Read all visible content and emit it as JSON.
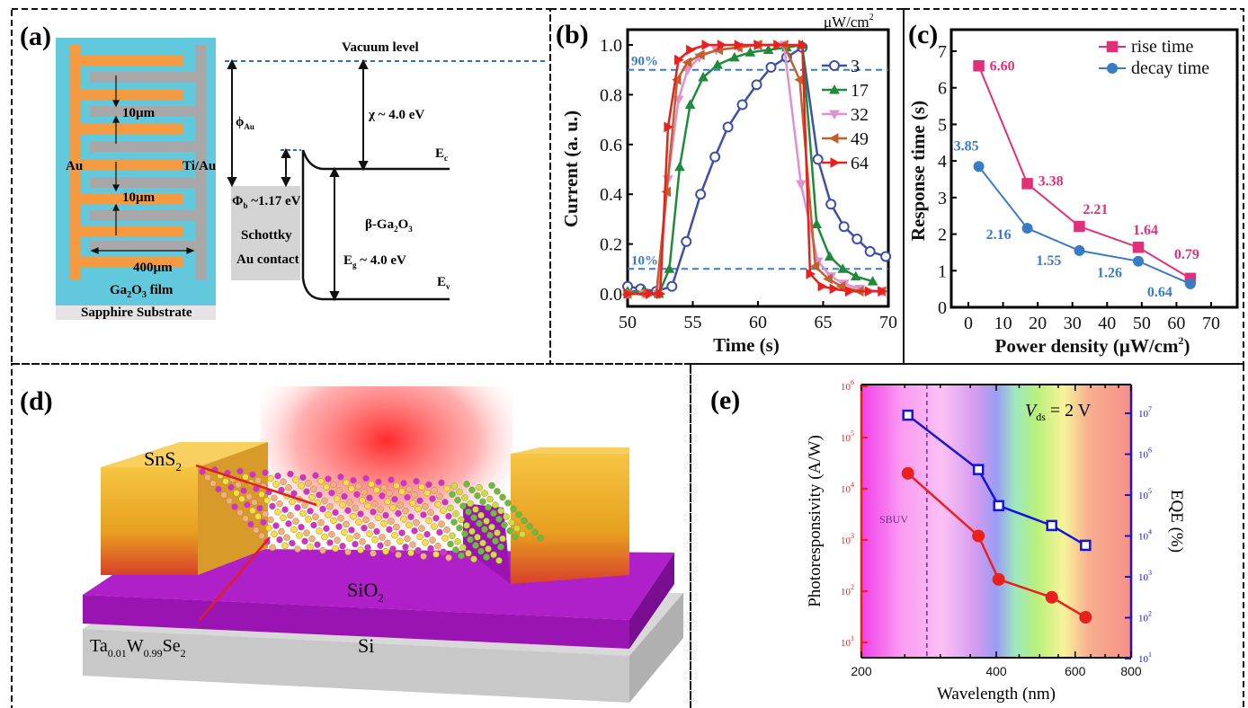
{
  "panels": {
    "a": {
      "label": "(a)",
      "device": {
        "au": "Au",
        "tiau": "Ti/Au",
        "gap1": "10µm",
        "gap2": "10µm",
        "length": "400µm",
        "film": "Ga",
        "film_sub1": "2",
        "film_o": "O",
        "film_sub2": "3",
        "film_tail": " film",
        "substrate": "Sapphire Substrate"
      },
      "band": {
        "vacuum": "Vacuum level",
        "phi_au": "ϕ",
        "phi_au_sub": "Au",
        "chi": "χ ~ 4.0 eV",
        "ec": "E",
        "ec_sub": "c",
        "phi_b": "Φ",
        "phi_b_sub": "b",
        "phi_b_val": " ~1.17 eV",
        "schottky1": "Schottky",
        "schottky2": "Au contact",
        "material": "β-Ga",
        "material_sub1": "2",
        "material_o": "O",
        "material_sub2": "3",
        "eg": "E",
        "eg_sub": "g",
        "eg_val": " ~ 4.0 eV",
        "ev": "E",
        "ev_sub": "v"
      }
    },
    "b": {
      "label": "(b)"
    },
    "c": {
      "label": "(c)"
    },
    "d": {
      "label": "(d)",
      "sns2": "SnS",
      "sns2_sub": "2",
      "tawse": [
        "Ta",
        "0.01",
        "W",
        "0.99",
        "Se",
        "2"
      ],
      "sio2": "SiO",
      "sio2_sub": "2",
      "si": "Si"
    },
    "e": {
      "label": "(e)",
      "vds_v": "V",
      "vds_sub": "ds",
      "vds_val": " = 2 V",
      "sbuv": "SBUV"
    }
  },
  "chart_data": [
    {
      "panel": "b",
      "type": "line",
      "xlabel": "Time (s)",
      "ylabel": "Current (a. u.)",
      "xlim": [
        50,
        70
      ],
      "ylim": [
        0,
        1.0
      ],
      "xticks": [
        "50",
        "55",
        "60",
        "65",
        "70"
      ],
      "yticks": [
        "0.0",
        "0.2",
        "0.4",
        "0.6",
        "0.8",
        "1.0"
      ],
      "legend_title": "μW/cm",
      "legend_title_sup": "2",
      "legend": "top-right",
      "reference_lines": [
        {
          "label": "90%",
          "y": 0.9,
          "color": "#3a7bc8"
        },
        {
          "label": "10%",
          "y": 0.1,
          "color": "#3a7bc8"
        }
      ],
      "series": [
        {
          "name": "3",
          "color": "#3d4fa8",
          "marker": "circle-open",
          "x": [
            50,
            51,
            52.2,
            53.4,
            54.5,
            55.6,
            56.7,
            57.7,
            58.8,
            59.9,
            61,
            62.2,
            63.4,
            64.6,
            65.6,
            66.6,
            67.6,
            68.6,
            69.8
          ],
          "y": [
            0.03,
            0.02,
            0.01,
            0.03,
            0.21,
            0.4,
            0.55,
            0.67,
            0.76,
            0.84,
            0.91,
            0.95,
            0.99,
            0.54,
            0.36,
            0.27,
            0.22,
            0.17,
            0.15
          ]
        },
        {
          "name": "17",
          "color": "#1f8a3b",
          "marker": "triangle-up",
          "x": [
            50,
            51.2,
            52.4,
            53.2,
            54,
            54.8,
            55.8,
            56.9,
            58.2,
            59.4,
            60.8,
            62.2,
            63.4,
            64.5,
            65.5,
            66.5,
            67.5,
            68.8
          ],
          "y": [
            0.01,
            0.01,
            0.0,
            0.1,
            0.51,
            0.76,
            0.87,
            0.92,
            0.95,
            0.97,
            0.98,
            0.99,
            1.0,
            0.28,
            0.15,
            0.1,
            0.07,
            0.05
          ]
        },
        {
          "name": "32",
          "color": "#e090d0",
          "marker": "triangle-down",
          "x": [
            50,
            51.2,
            52.3,
            53.1,
            53.9,
            54.6,
            55.5,
            56.8,
            58.5,
            60,
            62,
            63.3,
            64.6,
            65.6,
            66.6,
            67.8,
            69.5
          ],
          "y": [
            0.0,
            0.0,
            0.0,
            0.46,
            0.78,
            0.9,
            0.95,
            0.98,
            0.99,
            1.0,
            1.0,
            0.44,
            0.13,
            0.07,
            0.04,
            0.02,
            0.01
          ]
        },
        {
          "name": "49",
          "color": "#c0602a",
          "marker": "triangle-left",
          "x": [
            50,
            51.2,
            52.2,
            53,
            53.8,
            54.6,
            55.6,
            57,
            58.5,
            60,
            62,
            63.2,
            64.4,
            65.4,
            66.4,
            67.8,
            69.5
          ],
          "y": [
            0.0,
            0.0,
            0.0,
            0.41,
            0.86,
            0.93,
            0.96,
            0.98,
            0.99,
            1.0,
            1.0,
            0.86,
            0.11,
            0.06,
            0.03,
            0.01,
            0.01
          ]
        },
        {
          "name": "64",
          "color": "#e8201e",
          "marker": "triangle-right",
          "x": [
            50,
            51.7,
            52.5,
            53.1,
            53.9,
            54.8,
            56,
            57.2,
            58.5,
            60,
            61.5,
            63.4,
            64,
            64.9,
            65.8,
            67,
            68.5,
            69.5
          ],
          "y": [
            0.0,
            0.0,
            0.0,
            0.67,
            0.94,
            0.98,
            1.0,
            1.0,
            1.0,
            1.0,
            1.0,
            1.0,
            0.08,
            0.03,
            0.02,
            0.01,
            0.01,
            0.01
          ]
        }
      ]
    },
    {
      "panel": "c",
      "type": "line",
      "xlabel": "Power density (μW/cm",
      "xlabel_sup": "2",
      "xlabel_tail": ")",
      "ylabel": "Response time (s)",
      "xlim": [
        -5,
        70
      ],
      "ylim": [
        0,
        7
      ],
      "xticks": [
        "0",
        "10",
        "20",
        "30",
        "40",
        "50",
        "60",
        "70"
      ],
      "yticks": [
        "0",
        "1",
        "2",
        "3",
        "4",
        "5",
        "6",
        "7"
      ],
      "legend": "top-right",
      "series": [
        {
          "name": "rise time",
          "color": "#e0307a",
          "marker": "square",
          "x": [
            3,
            17,
            32,
            49,
            64
          ],
          "y": [
            6.6,
            3.38,
            2.21,
            1.64,
            0.79
          ],
          "labels": [
            "6.60",
            "3.38",
            "2.21",
            "1.64",
            "0.79"
          ]
        },
        {
          "name": "decay time",
          "color": "#3a7bc8",
          "marker": "circle",
          "x": [
            3,
            17,
            32,
            49,
            64
          ],
          "y": [
            3.85,
            2.16,
            1.55,
            1.26,
            0.64
          ],
          "labels": [
            "3.85",
            "2.16",
            "1.55",
            "1.26",
            "0.64"
          ]
        }
      ]
    },
    {
      "panel": "e",
      "type": "line",
      "xlabel": "Wavelength (nm)",
      "ylabel": "Photoresponsivity (A/W)",
      "y2label": "EQE (%)",
      "xscale": "log",
      "xlim": [
        200,
        800
      ],
      "xticks": [
        "200",
        "400",
        "600",
        "800"
      ],
      "yscale": "log",
      "ylim": [
        5,
        1100000
      ],
      "yticks_exp": [
        "1",
        "2",
        "3",
        "4",
        "5",
        "6"
      ],
      "y2scale": "log",
      "y2lim": [
        10,
        50000000
      ],
      "y2ticks_exp": [
        "1",
        "2",
        "3",
        "4",
        "5",
        "6",
        "7"
      ],
      "tick_base": "10",
      "sbuv_boundary_nm": 280,
      "series": [
        {
          "name": "Photoresponsivity",
          "axis": "left",
          "color": "#e8201e",
          "marker": "circle",
          "x": [
            254,
            365,
            405,
            532,
            633
          ],
          "y": [
            20000,
            1200,
            170,
            76,
            31
          ]
        },
        {
          "name": "EQE",
          "axis": "right",
          "color": "#1515d8",
          "marker": "square-open",
          "x": [
            254,
            365,
            405,
            532,
            633
          ],
          "y": [
            9000000,
            420000,
            55000,
            18000,
            5900
          ]
        }
      ],
      "colors": {
        "left_axis": "#e8201e",
        "right_axis": "#1515d8"
      }
    }
  ]
}
